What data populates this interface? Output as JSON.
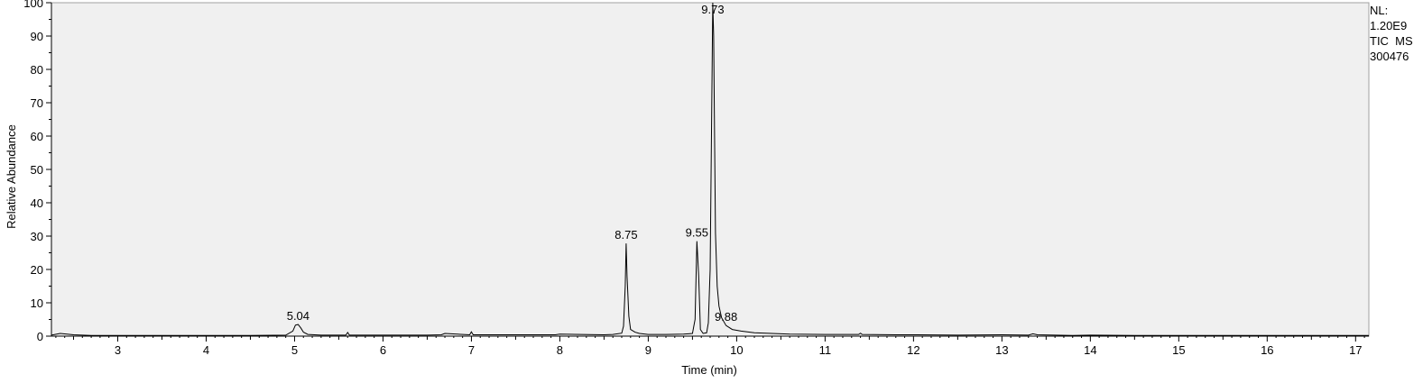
{
  "info": {
    "nl_label": "NL:",
    "nl_value": "1.20E9",
    "scan_filter": "TIC  MS",
    "sample_id": "300476"
  },
  "chart_data": {
    "type": "line",
    "title": "",
    "xlabel": "Time (min)",
    "ylabel": "Relative Abundance",
    "xlim": [
      2.25,
      17.15
    ],
    "ylim": [
      0,
      100
    ],
    "x_ticks": [
      3,
      4,
      5,
      6,
      7,
      8,
      9,
      10,
      11,
      12,
      13,
      14,
      15,
      16,
      17
    ],
    "y_ticks": [
      0,
      10,
      20,
      30,
      40,
      50,
      60,
      70,
      80,
      90,
      100
    ],
    "grid": false,
    "background": "#f0f0f0",
    "line_color": "#000000",
    "peak_labels": [
      {
        "x": 5.04,
        "y": 3.5,
        "text": "5.04"
      },
      {
        "x": 8.75,
        "y": 27.8,
        "text": "8.75"
      },
      {
        "x": 9.55,
        "y": 28.5,
        "text": "9.55"
      },
      {
        "x": 9.73,
        "y": 100,
        "text": "9.73"
      },
      {
        "x": 9.88,
        "y": 3.2,
        "text": "9.88"
      }
    ],
    "series": [
      {
        "x": [
          2.25,
          2.35,
          2.5,
          2.7,
          3.0,
          3.5,
          4.0,
          4.5,
          4.9,
          4.98,
          5.01,
          5.04,
          5.07,
          5.1,
          5.15,
          5.3,
          5.58,
          5.6,
          5.62,
          6.0,
          6.5,
          6.66,
          6.7,
          6.98,
          7.0,
          7.02,
          7.5,
          7.95,
          8.0,
          8.5,
          8.6,
          8.7,
          8.72,
          8.74,
          8.75,
          8.76,
          8.78,
          8.8,
          8.85,
          8.9,
          9.0,
          9.2,
          9.4,
          9.5,
          9.53,
          9.55,
          9.57,
          9.59,
          9.62,
          9.66,
          9.68,
          9.7,
          9.72,
          9.73,
          9.74,
          9.75,
          9.76,
          9.78,
          9.8,
          9.83,
          9.88,
          9.95,
          10.05,
          10.2,
          10.4,
          10.6,
          11.0,
          11.38,
          11.4,
          11.42,
          11.8,
          12.0,
          12.5,
          13.0,
          13.3,
          13.35,
          13.4,
          13.6,
          13.8,
          14.0,
          14.5,
          15.0,
          15.5,
          16.0,
          16.5,
          17.0,
          17.15
        ],
        "y": [
          0.3,
          0.8,
          0.4,
          0.2,
          0.2,
          0.2,
          0.2,
          0.2,
          0.3,
          1.5,
          3.3,
          3.5,
          2.5,
          1.2,
          0.5,
          0.3,
          0.3,
          1.1,
          0.3,
          0.3,
          0.3,
          0.4,
          0.8,
          0.4,
          1.3,
          0.4,
          0.4,
          0.4,
          0.6,
          0.4,
          0.5,
          0.9,
          3.0,
          15.0,
          27.8,
          18.0,
          6.0,
          2.0,
          1.2,
          0.8,
          0.5,
          0.5,
          0.6,
          0.8,
          5.0,
          28.5,
          18.0,
          2.0,
          0.8,
          1.0,
          4.0,
          20.0,
          75.0,
          100.0,
          90.0,
          60.0,
          31.0,
          15.0,
          9.0,
          5.5,
          3.2,
          2.0,
          1.5,
          1.0,
          0.8,
          0.6,
          0.5,
          0.5,
          0.9,
          0.5,
          0.4,
          0.4,
          0.3,
          0.4,
          0.3,
          0.7,
          0.4,
          0.3,
          0.2,
          0.3,
          0.2,
          0.2,
          0.2,
          0.2,
          0.2,
          0.2,
          0.2
        ]
      }
    ]
  }
}
